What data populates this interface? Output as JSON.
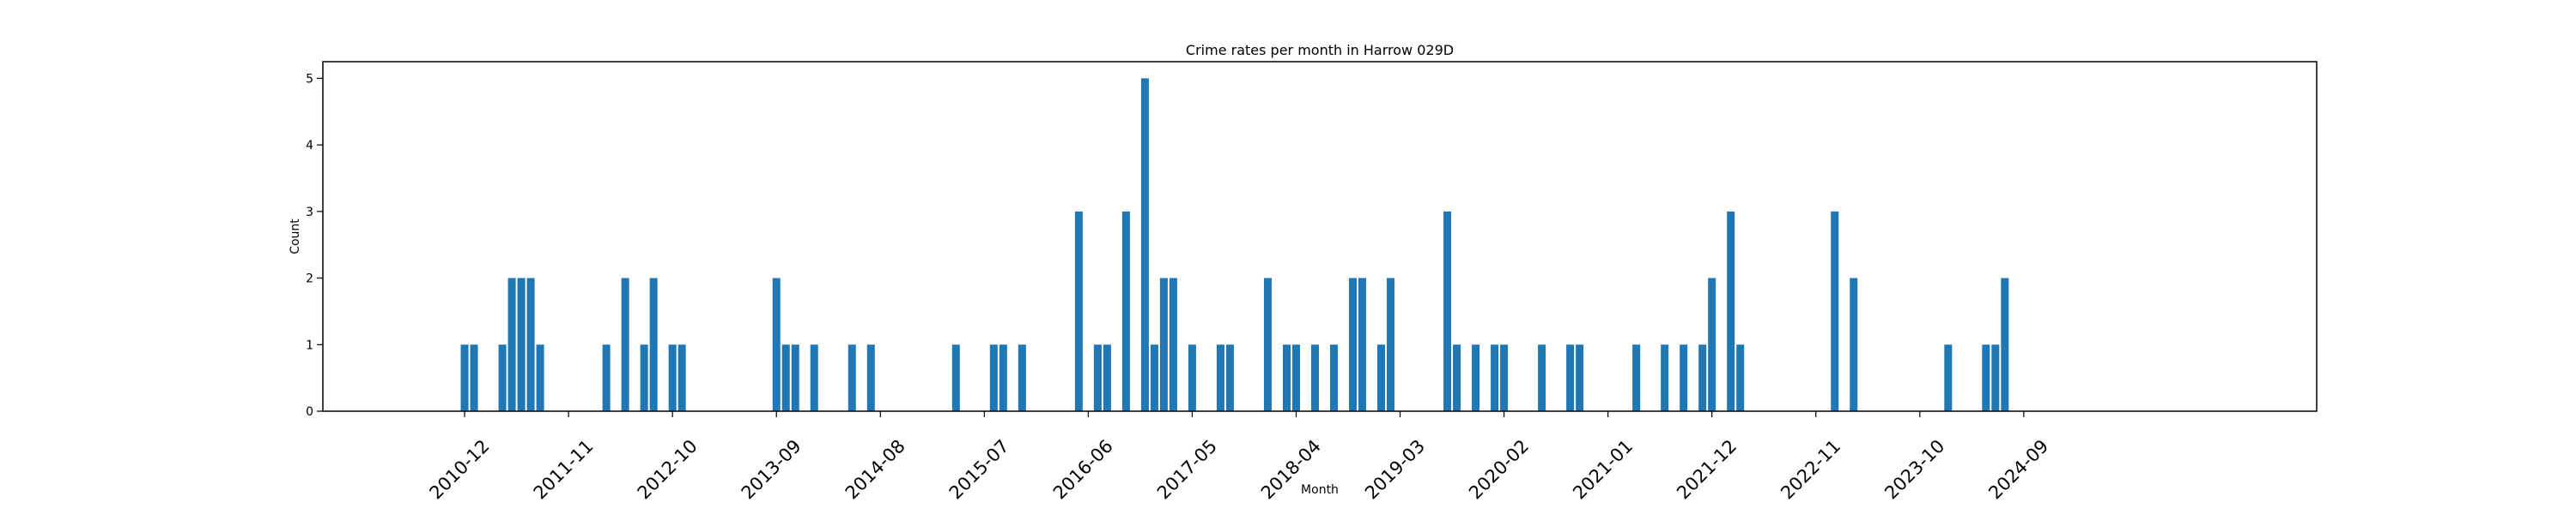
{
  "chart_data": {
    "type": "bar",
    "title": "Crime rates per month in Harrow 029D",
    "xlabel": "Month",
    "ylabel": "Count",
    "ylim": [
      0,
      5.25
    ],
    "xlim": [
      "2009-09",
      "2027-04"
    ],
    "yticks": [
      0,
      1,
      2,
      3,
      4,
      5
    ],
    "xticks": [
      "2010-12",
      "2011-11",
      "2012-10",
      "2013-09",
      "2014-08",
      "2015-07",
      "2016-06",
      "2017-05",
      "2018-04",
      "2019-03",
      "2020-02",
      "2021-01",
      "2021-12",
      "2022-11",
      "2023-10",
      "2024-09"
    ],
    "grid": false,
    "legend": false,
    "bar_color": "#1f77b4",
    "series": [
      {
        "x": [
          "2010-12",
          "2011-01",
          "2011-04",
          "2011-05",
          "2011-06",
          "2011-07",
          "2011-08",
          "2012-03",
          "2012-05",
          "2012-07",
          "2012-08",
          "2012-10",
          "2012-11",
          "2013-09",
          "2013-10",
          "2013-11",
          "2014-01",
          "2014-05",
          "2014-07",
          "2015-04",
          "2015-08",
          "2015-09",
          "2015-11",
          "2016-05",
          "2016-07",
          "2016-08",
          "2016-10",
          "2016-12",
          "2017-01",
          "2017-02",
          "2017-03",
          "2017-05",
          "2017-08",
          "2017-09",
          "2018-01",
          "2018-03",
          "2018-04",
          "2018-06",
          "2018-08",
          "2018-10",
          "2018-11",
          "2019-01",
          "2019-02",
          "2019-08",
          "2019-09",
          "2019-11",
          "2020-01",
          "2020-02",
          "2020-06",
          "2020-09",
          "2020-10",
          "2021-04",
          "2021-07",
          "2021-09",
          "2021-11",
          "2021-12",
          "2022-02",
          "2022-03",
          "2023-01",
          "2023-03",
          "2024-01",
          "2024-05",
          "2024-06",
          "2024-07"
        ],
        "values": [
          1,
          1,
          1,
          2,
          2,
          2,
          1,
          1,
          2,
          1,
          2,
          1,
          1,
          2,
          1,
          1,
          1,
          1,
          1,
          1,
          1,
          1,
          1,
          3,
          1,
          1,
          3,
          5,
          1,
          2,
          2,
          1,
          1,
          1,
          2,
          1,
          1,
          1,
          1,
          2,
          2,
          1,
          2,
          3,
          1,
          1,
          1,
          1,
          1,
          1,
          1,
          1,
          1,
          1,
          1,
          2,
          3,
          1,
          3,
          2,
          1,
          1,
          1,
          2
        ]
      }
    ]
  }
}
